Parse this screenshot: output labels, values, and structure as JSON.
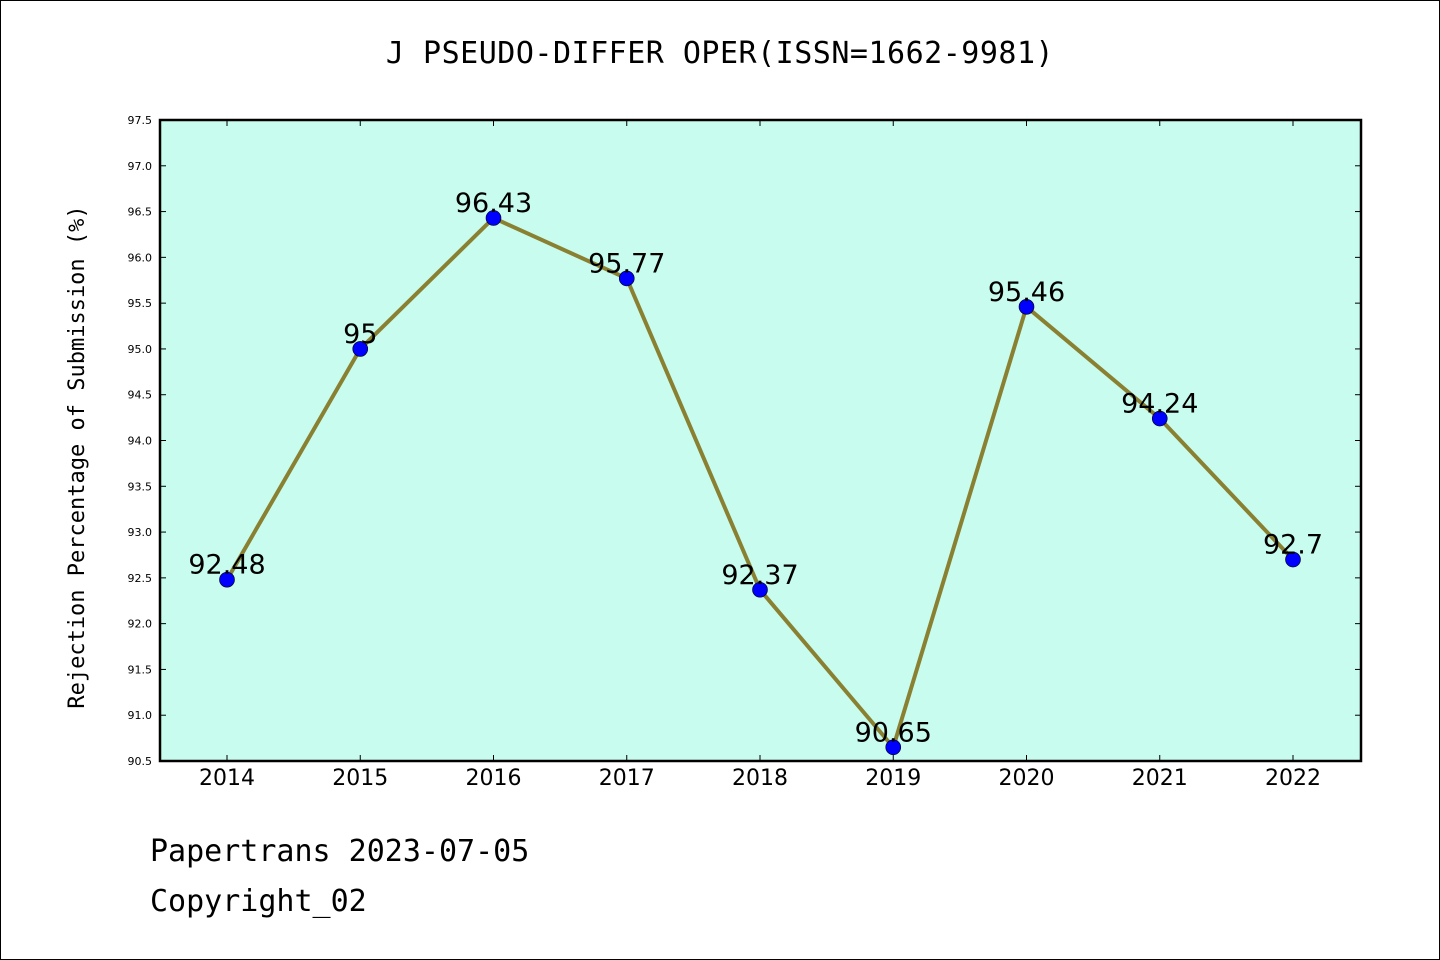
{
  "title": "J PSEUDO-DIFFER OPER(ISSN=1662-9981)",
  "footer": {
    "line1": "Papertrans 2023-07-05",
    "line2": "Copyright_02"
  },
  "colors": {
    "plot_background": "#c8fcee",
    "line": "#8a8032",
    "marker": "#0000ff"
  },
  "chart_data": {
    "type": "line",
    "title": "J PSEUDO-DIFFER OPER(ISSN=1662-9981)",
    "xlabel": "",
    "ylabel": "Rejection Percentage of Submission (%)",
    "categories": [
      "2014",
      "2015",
      "2016",
      "2017",
      "2018",
      "2019",
      "2020",
      "2021",
      "2022"
    ],
    "values": [
      92.48,
      95,
      96.43,
      95.77,
      92.37,
      90.65,
      95.46,
      94.24,
      92.7
    ],
    "data_labels": [
      "92.48",
      "95",
      "96.43",
      "95.77",
      "92.37",
      "90.65",
      "95.46",
      "94.24",
      "92.7"
    ],
    "ylim": [
      90.5,
      97.5
    ],
    "yticks": [
      "90.5",
      "91.0",
      "91.5",
      "92.0",
      "92.5",
      "93.0",
      "93.5",
      "94.0",
      "94.5",
      "95.0",
      "95.5",
      "96.0",
      "96.5",
      "97.0",
      "97.5"
    ],
    "grid": false,
    "legend": "none"
  }
}
